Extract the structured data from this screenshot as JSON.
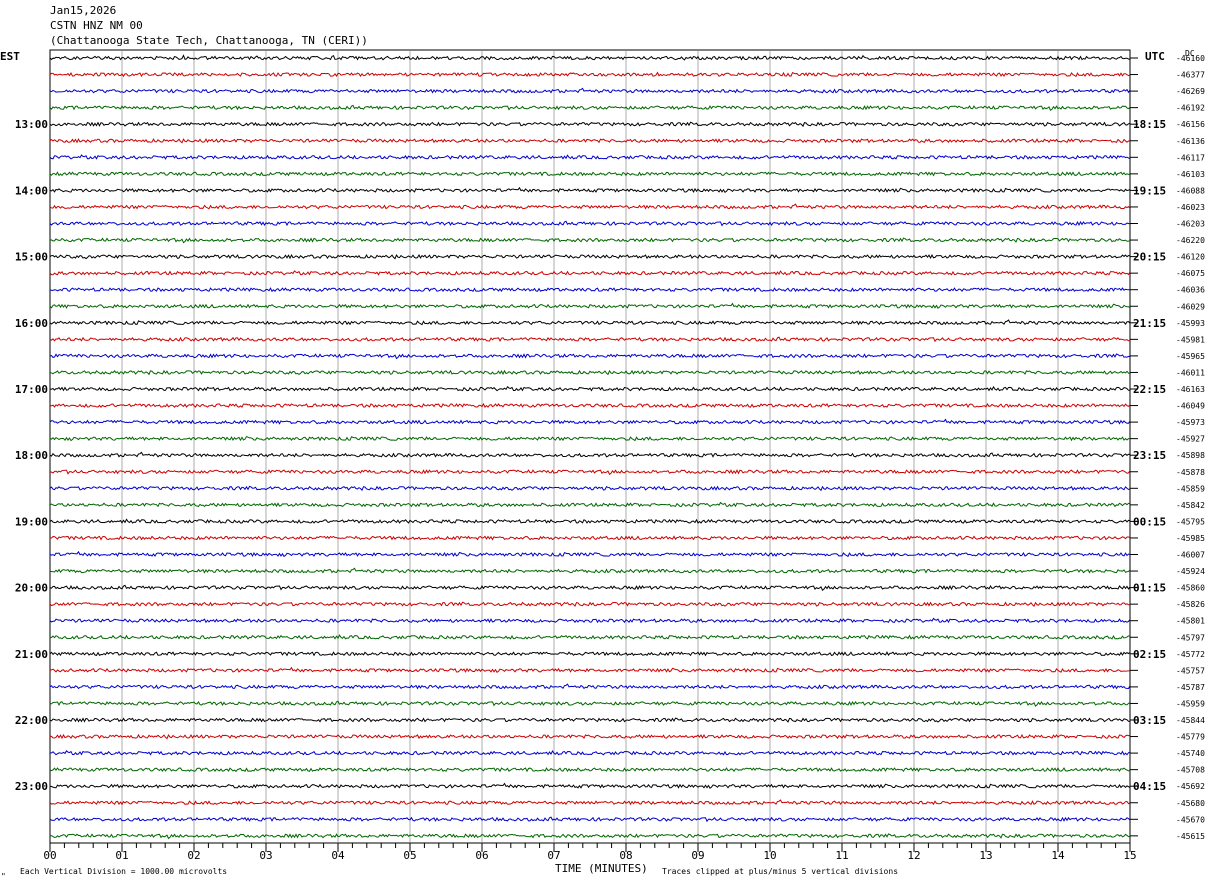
{
  "header": {
    "date": "Jan15,2026",
    "station": "CSTN HNZ NM 00",
    "location": "(Chattanooga State Tech, Chattanooga, TN (CERI))"
  },
  "left_timezone": "EST",
  "right_timezone": "UTC",
  "dc_label": "DC",
  "footer": {
    "scale_note": "Each Vertical Division = 1000.00 microvolts",
    "x_axis_label": "TIME (MINUTES)",
    "clip_note": "Traces clipped at plus/minus 5 vertical divisions",
    "corner_mark": "\""
  },
  "colors": {
    "trace_cycle": [
      "#000000",
      "#cc0000",
      "#0000cc",
      "#006600"
    ],
    "grid": "#888888",
    "text": "#000000",
    "background": "#ffffff"
  },
  "chart_data": {
    "type": "line",
    "title": "Jan15,2026 CSTN HNZ NM 00",
    "xlabel": "TIME (MINUTES)",
    "ylabel": "",
    "x_ticks": [
      "00",
      "01",
      "02",
      "03",
      "04",
      "05",
      "06",
      "07",
      "08",
      "09",
      "10",
      "11",
      "12",
      "13",
      "14",
      "15"
    ],
    "xlim": [
      0,
      15
    ],
    "rows_per_hour": 4,
    "num_traces": 48,
    "left_hour_labels": [
      "13:00",
      "14:00",
      "15:00",
      "16:00",
      "17:00",
      "18:00",
      "19:00",
      "20:00",
      "21:00",
      "22:00",
      "23:00"
    ],
    "right_hour_labels": [
      "18:15",
      "19:15",
      "20:15",
      "21:15",
      "22:15",
      "23:15",
      "00:15",
      "01:15",
      "02:15",
      "03:15",
      "04:15"
    ],
    "hour_label_first_trace_index": 4,
    "dc_offsets": [
      "-46160",
      "-46377",
      "-46269",
      "-46192",
      "-46156",
      "-46136",
      "-46117",
      "-46103",
      "-46088",
      "-46023",
      "-46203",
      "-46220",
      "-46120",
      "-46075",
      "-46036",
      "-46029",
      "-45993",
      "-45981",
      "-45965",
      "-46011",
      "-46163",
      "-46049",
      "-45973",
      "-45927",
      "-45898",
      "-45878",
      "-45859",
      "-45842",
      "-45795",
      "-45985",
      "-46007",
      "-45924",
      "-45860",
      "-45826",
      "-45801",
      "-45797",
      "-45772",
      "-45757",
      "-45787",
      "-45959",
      "-45844",
      "-45779",
      "-45740",
      "-45708",
      "-45692",
      "-45680",
      "-45670",
      "-45615"
    ]
  }
}
